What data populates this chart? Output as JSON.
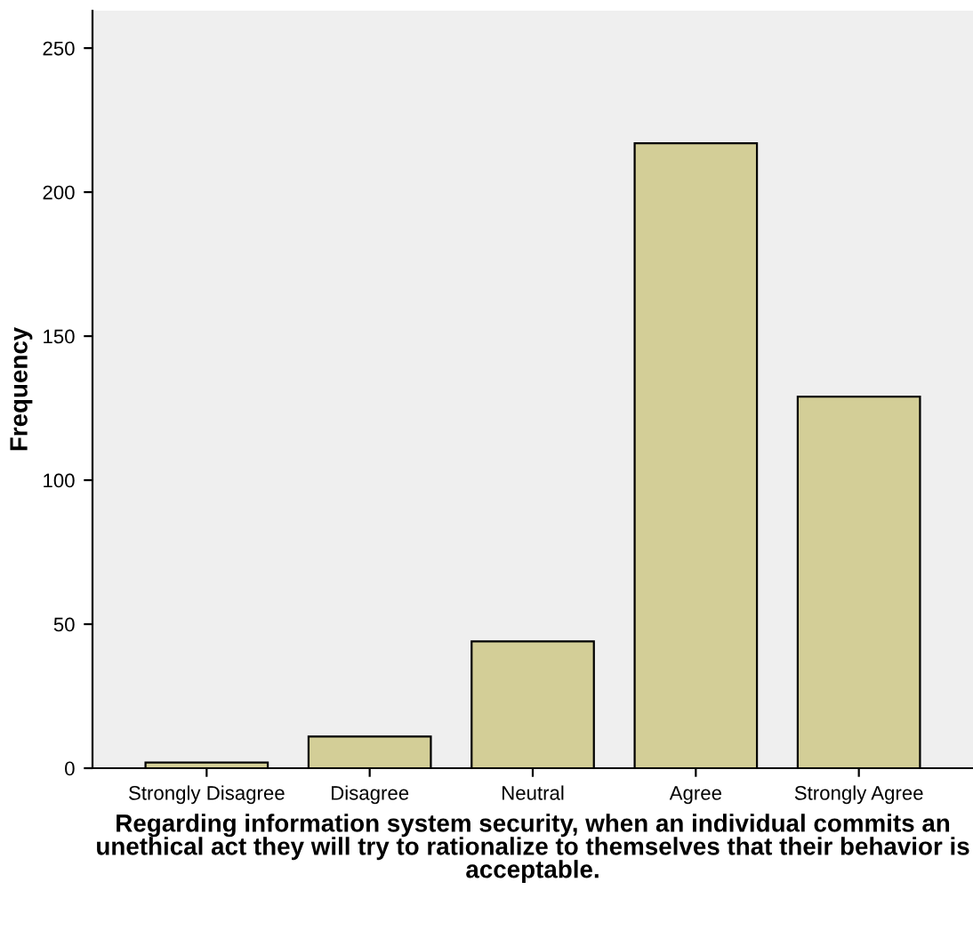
{
  "chart_data": {
    "type": "bar",
    "xlabel": "Regarding information system security, when an individual commits an\nunethical act they will try to rationalize to themselves that their behavior is\nacceptable.",
    "ylabel": "Frequency",
    "categories": [
      "Strongly Disagree",
      "Disagree",
      "Neutral",
      "Agree",
      "Strongly Agree"
    ],
    "values": [
      2,
      11,
      44,
      217,
      129
    ],
    "color": "#d3ce97",
    "ylim": [
      0,
      263
    ],
    "yticks": [
      0,
      50,
      100,
      150,
      200,
      250
    ],
    "grid": false
  }
}
